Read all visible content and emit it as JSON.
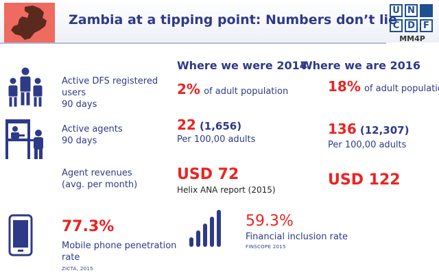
{
  "header": {
    "title": "Zambia at a tipping point: Numbers don’t lie",
    "logo_letters": [
      "U",
      "N",
      "C",
      "D",
      "F"
    ],
    "logo_subtitle": "MM4P"
  },
  "columns": {
    "year_2014": "Where we were 2014",
    "year_2016": "Where we are 2016"
  },
  "rows": {
    "registered_users": {
      "label_line1": "Active DFS registered",
      "label_line2": "users",
      "label_line3": "90 days",
      "v2014": "2%",
      "v2014_suffix": "of adult population",
      "v2016": "18%",
      "v2016_suffix": "of adult population"
    },
    "agents": {
      "label_line1": "Active agents",
      "label_line2": "90 days",
      "v2014": "22",
      "v2014_paren": "(1,656)",
      "v2014_sub": "Per 100,00 adults",
      "v2016": "136",
      "v2016_paren": "(12,307)",
      "v2016_sub": "Per 100,00 adults"
    },
    "revenues": {
      "label_line1": "Agent revenues",
      "label_line2": "(avg. per month)",
      "v2014": "USD 72",
      "v2014_sub": "Helix ANA report (2015)",
      "v2016": "USD 122"
    }
  },
  "mobile": {
    "value": "77.3%",
    "label_line1": "Mobile phone penetration",
    "label_line2": "rate",
    "source": "ZICTA, 2015"
  },
  "financial": {
    "value": "59.3%",
    "label": "Financial inclusion rate",
    "source": "FINSCOPE 2015"
  },
  "icons": {
    "people": "people-group-icon",
    "agent": "agent-kiosk-icon",
    "phone": "mobile-phone-icon",
    "signal": "signal-bars-icon",
    "map": "zambia-map-icon"
  },
  "colors": {
    "navy": "#2e3a87",
    "red": "#ee2222",
    "map_bg": "#ef6a5f",
    "logo_blue": "#1e4f8f"
  }
}
